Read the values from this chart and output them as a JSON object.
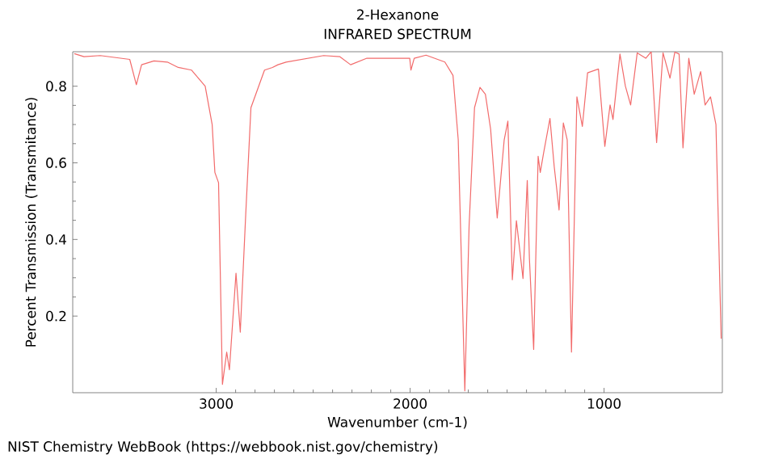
{
  "chart_data": {
    "type": "line",
    "title": "2-Hexanone",
    "subtitle": "INFRARED SPECTRUM",
    "xlabel": "Wavenumber (cm-1)",
    "ylabel": "Percent Transmission (Transmitance)",
    "annotations": [
      "NIST Chemistry WebBook (https://webbook.nist.gov/chemistry)"
    ],
    "xlim": [
      3740,
      390
    ],
    "ylim": [
      0,
      0.89
    ],
    "xticks": [
      3000,
      2000,
      1000
    ],
    "yticks": [
      0.2,
      0.4,
      0.6,
      0.8
    ],
    "series": [
      {
        "color": "#f26b6b",
        "x": [
          3732,
          3682,
          3598,
          3446,
          3412,
          3385,
          3321,
          3252,
          3196,
          3127,
          3057,
          3021,
          3007,
          2988,
          2968,
          2946,
          2932,
          2898,
          2876,
          2848,
          2821,
          2751,
          2710,
          2682,
          2640,
          2446,
          2362,
          2307,
          2223,
          2112,
          2002,
          1996,
          1979,
          1918,
          1821,
          1779,
          1752,
          1718,
          1696,
          1668,
          1640,
          1612,
          1585,
          1551,
          1515,
          1496,
          1473,
          1452,
          1418,
          1396,
          1385,
          1363,
          1340,
          1329,
          1312,
          1279,
          1257,
          1232,
          1210,
          1190,
          1168,
          1140,
          1112,
          1085,
          1029,
          996,
          969,
          954,
          918,
          890,
          863,
          829,
          785,
          757,
          729,
          696,
          660,
          635,
          613,
          593,
          563,
          535,
          502,
          479,
          451,
          423,
          396
        ],
        "values": [
          0.885,
          0.877,
          0.88,
          0.87,
          0.804,
          0.856,
          0.866,
          0.863,
          0.849,
          0.842,
          0.8,
          0.7,
          0.575,
          0.548,
          0.022,
          0.106,
          0.06,
          0.312,
          0.158,
          0.464,
          0.744,
          0.842,
          0.849,
          0.856,
          0.863,
          0.88,
          0.877,
          0.856,
          0.873,
          0.873,
          0.873,
          0.842,
          0.873,
          0.881,
          0.863,
          0.828,
          0.66,
          0.005,
          0.435,
          0.744,
          0.797,
          0.779,
          0.688,
          0.456,
          0.66,
          0.709,
          0.295,
          0.449,
          0.298,
          0.554,
          0.351,
          0.113,
          0.617,
          0.575,
          0.625,
          0.716,
          0.59,
          0.477,
          0.704,
          0.66,
          0.106,
          0.772,
          0.695,
          0.835,
          0.845,
          0.643,
          0.751,
          0.713,
          0.884,
          0.8,
          0.751,
          0.887,
          0.873,
          0.89,
          0.653,
          0.887,
          0.821,
          0.889,
          0.884,
          0.639,
          0.873,
          0.779,
          0.838,
          0.751,
          0.772,
          0.7,
          0.141
        ]
      }
    ]
  }
}
